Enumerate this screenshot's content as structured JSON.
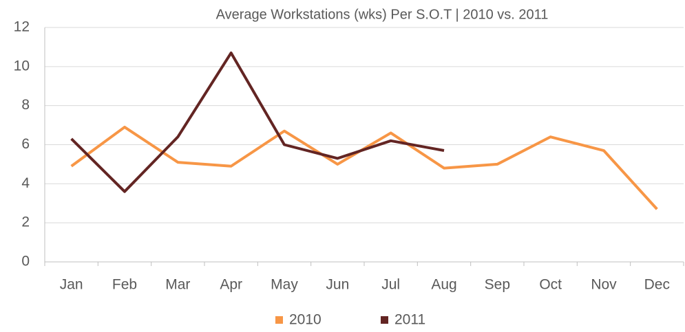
{
  "chart_data": {
    "type": "line",
    "title": "Average Workstations (wks) Per S.O.T | 2010 vs. 2011",
    "categories": [
      "Jan",
      "Feb",
      "Mar",
      "Apr",
      "May",
      "Jun",
      "Jul",
      "Aug",
      "Sep",
      "Oct",
      "Nov",
      "Dec"
    ],
    "series": [
      {
        "name": "2010",
        "color": "#f79646",
        "values": [
          4.9,
          6.9,
          5.1,
          4.9,
          6.7,
          5.0,
          6.6,
          4.8,
          5.0,
          6.4,
          5.7,
          2.7
        ]
      },
      {
        "name": "2011",
        "color": "#632523",
        "values": [
          6.3,
          3.6,
          6.4,
          10.7,
          6.0,
          5.3,
          6.2,
          5.7,
          null,
          null,
          null,
          null
        ]
      }
    ],
    "ylim": [
      0,
      12
    ],
    "yticks": [
      0,
      2,
      4,
      6,
      8,
      10,
      12
    ],
    "grid": true,
    "legend": "bottom"
  }
}
